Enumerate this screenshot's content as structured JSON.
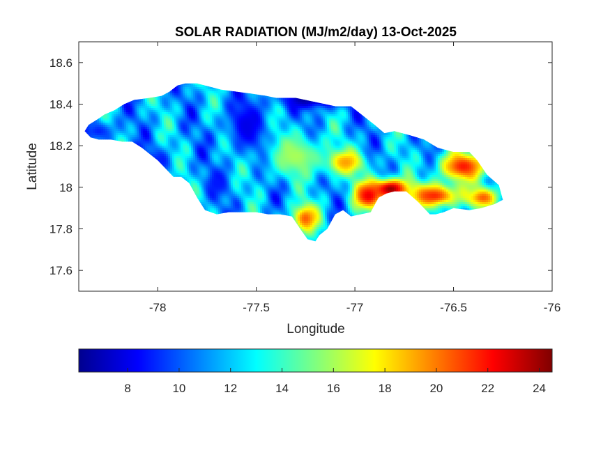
{
  "chart_data": {
    "type": "heatmap",
    "title": "SOLAR RADIATION (MJ/m2/day) 13-Oct-2025",
    "xlabel": "Longitude",
    "ylabel": "Latitude",
    "xlim": [
      -78.4,
      -76
    ],
    "ylim": [
      17.5,
      18.7
    ],
    "xticks": [
      -78,
      -77.5,
      -77,
      -76.5,
      -76
    ],
    "xtick_labels": [
      "-78",
      "-77.5",
      "-77",
      "-76.5",
      "-76"
    ],
    "yticks": [
      17.6,
      17.8,
      18,
      18.2,
      18.4,
      18.6
    ],
    "ytick_labels": [
      "17.6",
      "17.8",
      "18",
      "18.2",
      "18.4",
      "18.6"
    ],
    "grid": false,
    "colormap": "jet",
    "colorbar": {
      "orientation": "horizontal",
      "location": "bottom",
      "range": [
        6.1,
        24.5
      ],
      "ticks": [
        8,
        10,
        12,
        14,
        16,
        18,
        20,
        22,
        24
      ],
      "tick_labels": [
        "8",
        "10",
        "12",
        "14",
        "16",
        "18",
        "20",
        "22",
        "24"
      ]
    },
    "region_outline": {
      "lon": [
        -78.37,
        -78.35,
        -78.3,
        -78.27,
        -78.22,
        -78.17,
        -78.12,
        -78.04,
        -77.98,
        -77.94,
        -77.9,
        -77.86,
        -77.8,
        -77.76,
        -77.72,
        -77.68,
        -77.6,
        -77.52,
        -77.45,
        -77.4,
        -77.3,
        -77.2,
        -77.1,
        -77.02,
        -76.98,
        -76.9,
        -76.85,
        -76.8,
        -76.72,
        -76.65,
        -76.58,
        -76.5,
        -76.42,
        -76.38,
        -76.33,
        -76.27,
        -76.25,
        -76.29,
        -76.36,
        -76.42,
        -76.5,
        -76.55,
        -76.59,
        -76.62,
        -76.68,
        -76.74,
        -76.8,
        -76.84,
        -76.88,
        -76.92,
        -76.97,
        -77.02,
        -77.06,
        -77.1,
        -77.14,
        -77.18,
        -77.2,
        -77.24,
        -77.27,
        -77.32,
        -77.38,
        -77.44,
        -77.5,
        -77.56,
        -77.64,
        -77.7,
        -77.76,
        -77.8,
        -77.84,
        -77.88,
        -77.92,
        -77.96,
        -78.0,
        -78.04,
        -78.08,
        -78.13,
        -78.18,
        -78.24,
        -78.3,
        -78.34,
        -78.37
      ],
      "lat": [
        18.27,
        18.3,
        18.33,
        18.35,
        18.37,
        18.4,
        18.42,
        18.43,
        18.44,
        18.46,
        18.49,
        18.5,
        18.5,
        18.49,
        18.48,
        18.47,
        18.46,
        18.45,
        18.44,
        18.43,
        18.43,
        18.41,
        18.39,
        18.39,
        18.36,
        18.3,
        18.26,
        18.27,
        18.25,
        18.23,
        18.19,
        18.17,
        18.17,
        18.13,
        18.06,
        18.01,
        17.94,
        17.92,
        17.9,
        17.89,
        17.9,
        17.88,
        17.87,
        17.87,
        17.93,
        17.98,
        17.98,
        17.97,
        17.95,
        17.88,
        17.87,
        17.86,
        17.89,
        17.87,
        17.8,
        17.77,
        17.74,
        17.75,
        17.79,
        17.86,
        17.87,
        17.87,
        17.88,
        17.88,
        17.88,
        17.87,
        17.89,
        17.95,
        18.02,
        18.05,
        18.05,
        18.09,
        18.13,
        18.16,
        18.19,
        18.22,
        18.22,
        18.23,
        18.23,
        18.24,
        18.27
      ]
    },
    "value_field": {
      "base_mean": 11.5,
      "hotspots": [
        {
          "lon": -76.82,
          "lat": 17.99,
          "value": 24.5,
          "sigma_lon": 0.09,
          "sigma_lat": 0.05
        },
        {
          "lon": -76.93,
          "lat": 17.96,
          "value": 22.5,
          "sigma_lon": 0.08,
          "sigma_lat": 0.07
        },
        {
          "lon": -76.45,
          "lat": 18.1,
          "value": 21.8,
          "sigma_lon": 0.12,
          "sigma_lat": 0.07
        },
        {
          "lon": -76.6,
          "lat": 17.96,
          "value": 21.5,
          "sigma_lon": 0.14,
          "sigma_lat": 0.06
        },
        {
          "lon": -77.25,
          "lat": 17.85,
          "value": 20.5,
          "sigma_lon": 0.07,
          "sigma_lat": 0.07
        },
        {
          "lon": -77.05,
          "lat": 18.12,
          "value": 19.5,
          "sigma_lon": 0.1,
          "sigma_lat": 0.06
        },
        {
          "lon": -76.35,
          "lat": 17.95,
          "value": 20.5,
          "sigma_lon": 0.08,
          "sigma_lat": 0.05
        },
        {
          "lon": -77.3,
          "lat": 18.15,
          "value": 16.0,
          "sigma_lon": 0.15,
          "sigma_lat": 0.1
        }
      ],
      "coldspots": [
        {
          "lon": -77.2,
          "lat": 18.43,
          "value": 6.5,
          "sigma_lon": 0.18,
          "sigma_lat": 0.05
        },
        {
          "lon": -77.55,
          "lat": 18.3,
          "value": 8.0,
          "sigma_lon": 0.1,
          "sigma_lat": 0.12
        },
        {
          "lon": -78.05,
          "lat": 18.12,
          "value": 8.5,
          "sigma_lon": 0.1,
          "sigma_lat": 0.06
        },
        {
          "lon": -78.3,
          "lat": 18.27,
          "value": 9.0,
          "sigma_lon": 0.08,
          "sigma_lat": 0.05
        },
        {
          "lon": -77.7,
          "lat": 18.02,
          "value": 8.8,
          "sigma_lon": 0.06,
          "sigma_lat": 0.06
        }
      ]
    }
  }
}
